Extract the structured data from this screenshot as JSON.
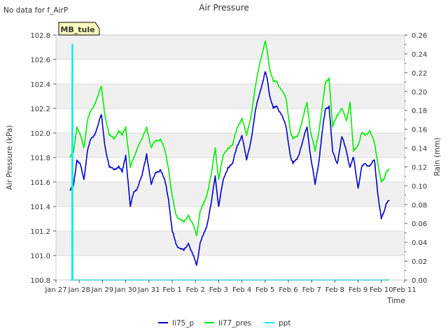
{
  "status_text": "No data for f_AirP",
  "chart_data": {
    "type": "line",
    "title": "Air Pressure",
    "badge": "MB_tule",
    "xlabel": "Time",
    "ylabel_left": "Air Pressure (kPa)",
    "ylabel_right": "Rain (mm)",
    "x_ticks": [
      "Jan 27",
      "Jan 28",
      "Jan 29",
      "Jan 30",
      "Jan 31",
      "Feb 1",
      "Feb 2",
      "Feb 3",
      "Feb 4",
      "Feb 5",
      "Feb 6",
      "Feb 7",
      "Feb 8",
      "Feb 9",
      "Feb 10",
      "Feb 11"
    ],
    "x_range_days": [
      0,
      15
    ],
    "y_left_range": [
      100.8,
      102.8
    ],
    "y_left_ticks": [
      "100.8",
      "101.0",
      "101.2",
      "101.4",
      "101.6",
      "101.8",
      "102.0",
      "102.2",
      "102.4",
      "102.6",
      "102.8"
    ],
    "y_right_range": [
      0,
      0.26
    ],
    "y_right_ticks": [
      "0.00",
      "0.02",
      "0.04",
      "0.06",
      "0.08",
      "0.10",
      "0.12",
      "0.14",
      "0.16",
      "0.18",
      "0.20",
      "0.22",
      "0.24",
      "0.26"
    ],
    "colors": {
      "li75_p": "#0000cc",
      "li77_pres": "#00ee00",
      "ppt": "#00eeee",
      "band": "#f0f0f0",
      "badge_bg": "#ffffc0",
      "badge_text": "#880000"
    },
    "series": [
      {
        "name": "li75_p",
        "axis": "left",
        "x": [
          0.6,
          0.75,
          0.9,
          1.05,
          1.2,
          1.35,
          1.5,
          1.7,
          1.95,
          2.1,
          2.3,
          2.5,
          2.7,
          2.85,
          3.0,
          3.2,
          3.35,
          3.5,
          3.7,
          3.9,
          4.1,
          4.3,
          4.5,
          4.7,
          4.85,
          5.0,
          5.15,
          5.3,
          5.5,
          5.7,
          5.9,
          6.05,
          6.2,
          6.35,
          6.5,
          6.7,
          6.85,
          7.0,
          7.2,
          7.4,
          7.6,
          7.8,
          8.0,
          8.2,
          8.4,
          8.6,
          8.8,
          9.0,
          9.1,
          9.2,
          9.35,
          9.5,
          9.7,
          9.9,
          10.1,
          10.2,
          10.4,
          10.6,
          10.8,
          10.95,
          11.15,
          11.3,
          11.45,
          11.6,
          11.75,
          11.9,
          12.1,
          12.3,
          12.5,
          12.65,
          12.8,
          13.0,
          13.15,
          13.3,
          13.5,
          13.7,
          13.85,
          14.0,
          14.1,
          14.2,
          14.35
        ],
        "values": [
          101.53,
          101.57,
          101.78,
          101.74,
          101.62,
          101.85,
          101.95,
          102.0,
          102.15,
          101.9,
          101.72,
          101.7,
          101.73,
          101.68,
          101.82,
          101.4,
          101.52,
          101.55,
          101.65,
          101.83,
          101.58,
          101.68,
          101.7,
          101.6,
          101.45,
          101.2,
          101.1,
          101.06,
          101.04,
          101.1,
          101.0,
          100.92,
          101.1,
          101.17,
          101.25,
          101.45,
          101.65,
          101.4,
          101.62,
          101.72,
          101.75,
          101.9,
          101.98,
          101.78,
          101.95,
          102.2,
          102.35,
          102.5,
          102.43,
          102.3,
          102.2,
          102.22,
          102.15,
          102.05,
          101.8,
          101.75,
          101.8,
          101.92,
          102.05,
          101.82,
          101.58,
          101.75,
          102.0,
          102.2,
          102.22,
          101.85,
          101.75,
          101.97,
          101.85,
          101.72,
          101.8,
          101.55,
          101.72,
          101.75,
          101.73,
          101.78,
          101.5,
          101.3,
          101.35,
          101.42,
          101.45
        ]
      },
      {
        "name": "li77_pres",
        "axis": "left",
        "x": [
          0.6,
          0.75,
          0.9,
          1.05,
          1.2,
          1.35,
          1.5,
          1.7,
          1.95,
          2.1,
          2.3,
          2.5,
          2.7,
          2.85,
          3.0,
          3.2,
          3.35,
          3.5,
          3.7,
          3.9,
          4.1,
          4.3,
          4.5,
          4.7,
          4.85,
          5.0,
          5.15,
          5.3,
          5.5,
          5.7,
          5.9,
          6.05,
          6.2,
          6.35,
          6.5,
          6.7,
          6.85,
          7.0,
          7.2,
          7.4,
          7.6,
          7.8,
          8.0,
          8.2,
          8.4,
          8.6,
          8.8,
          9.0,
          9.1,
          9.2,
          9.35,
          9.5,
          9.7,
          9.9,
          10.1,
          10.2,
          10.4,
          10.6,
          10.8,
          10.95,
          11.15,
          11.3,
          11.45,
          11.6,
          11.75,
          11.9,
          12.1,
          12.3,
          12.5,
          12.65,
          12.8,
          13.0,
          13.15,
          13.3,
          13.5,
          13.7,
          13.85,
          14.0,
          14.1,
          14.2,
          14.35
        ],
        "values": [
          101.8,
          101.84,
          102.05,
          101.98,
          101.88,
          102.1,
          102.18,
          102.25,
          102.38,
          102.15,
          101.98,
          101.95,
          102.02,
          101.98,
          102.05,
          101.72,
          101.8,
          101.88,
          101.95,
          102.05,
          101.88,
          101.94,
          101.95,
          101.85,
          101.7,
          101.48,
          101.34,
          101.3,
          101.27,
          101.33,
          101.25,
          101.16,
          101.36,
          101.42,
          101.5,
          101.68,
          101.88,
          101.62,
          101.82,
          101.88,
          101.9,
          102.05,
          102.12,
          101.98,
          102.15,
          102.4,
          102.6,
          102.75,
          102.65,
          102.52,
          102.42,
          102.42,
          102.35,
          102.28,
          102.0,
          101.95,
          101.98,
          102.1,
          102.25,
          102.02,
          101.85,
          102.0,
          102.2,
          102.42,
          102.45,
          102.05,
          102.15,
          102.2,
          102.1,
          102.25,
          101.85,
          101.9,
          102.0,
          101.98,
          102.02,
          101.92,
          101.75,
          101.6,
          101.62,
          101.68,
          101.7
        ]
      },
      {
        "name": "ppt",
        "axis": "right",
        "x": [
          0.6,
          0.69,
          0.7,
          0.71,
          0.72,
          0.73,
          14.35
        ],
        "values": [
          0,
          0,
          0.25,
          0.25,
          0,
          0,
          0
        ]
      }
    ]
  }
}
